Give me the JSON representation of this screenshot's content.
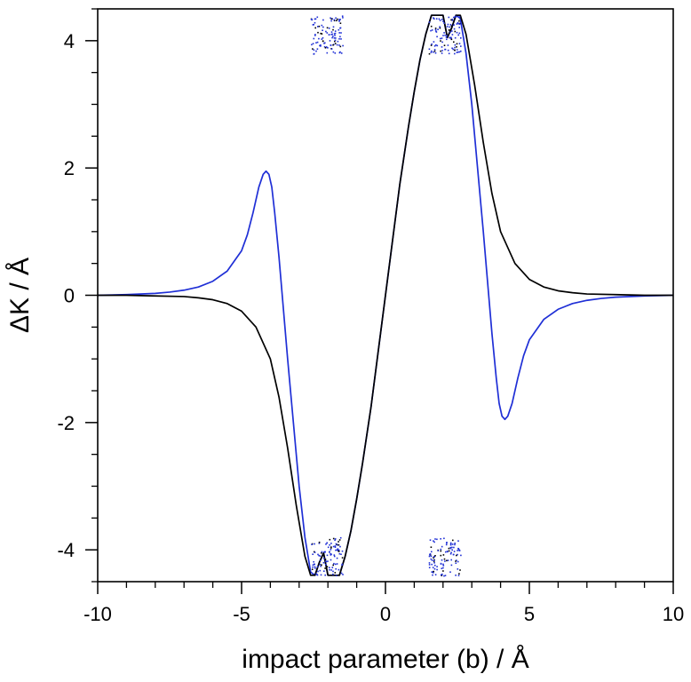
{
  "chart_data": {
    "type": "line",
    "title": "",
    "xlabel": "impact parameter (b) / Å",
    "ylabel": "ΔK / Å",
    "xlim": [
      -10,
      10
    ],
    "ylim": [
      -4.5,
      4.5
    ],
    "x_ticks": [
      -10,
      -5,
      0,
      5,
      10
    ],
    "y_ticks": [
      -4,
      -2,
      0,
      2,
      4
    ],
    "x_tick_labels": [
      "-10",
      "-5",
      "0",
      "5",
      "10"
    ],
    "y_tick_labels": [
      "-4",
      "-2",
      "0",
      "2",
      "4"
    ],
    "grid": false,
    "legend": "none",
    "clip_value": 4.4,
    "series": [
      {
        "name": "black curve",
        "color": "#000000",
        "x": [
          -10,
          -9,
          -8,
          -7,
          -6.5,
          -6,
          -5.5,
          -5,
          -4.5,
          -4,
          -3.7,
          -3.4,
          -3.1,
          -2.8,
          -2.6,
          -2.45,
          -2.3,
          -2.15,
          -2.0,
          -1.8,
          -1.6,
          -1.4,
          -1.2,
          -1.0,
          -0.8,
          -0.5,
          -0.2,
          0,
          0.2,
          0.5,
          0.8,
          1.0,
          1.2,
          1.4,
          1.6,
          1.8,
          2.0,
          2.15,
          2.3,
          2.45,
          2.6,
          2.8,
          3.1,
          3.4,
          3.7,
          4,
          4.5,
          5,
          5.5,
          6,
          6.5,
          7,
          8,
          9,
          10
        ],
        "y": [
          0,
          0,
          -0.01,
          -0.02,
          -0.04,
          -0.07,
          -0.13,
          -0.25,
          -0.5,
          -1.0,
          -1.6,
          -2.4,
          -3.3,
          -4.1,
          -4.4,
          -4.4,
          -4.2,
          -4.05,
          -4.4,
          -4.4,
          -4.4,
          -4.1,
          -3.7,
          -3.2,
          -2.65,
          -1.75,
          -0.7,
          0,
          0.7,
          1.75,
          2.65,
          3.2,
          3.7,
          4.1,
          4.4,
          4.4,
          4.4,
          4.05,
          4.2,
          4.4,
          4.4,
          4.1,
          3.3,
          2.4,
          1.6,
          1.0,
          0.5,
          0.25,
          0.13,
          0.07,
          0.04,
          0.02,
          0.01,
          0,
          0
        ]
      },
      {
        "name": "blue curve",
        "color": "#1f2fd6",
        "x": [
          -10,
          -9,
          -8,
          -7.5,
          -7,
          -6.5,
          -6,
          -5.5,
          -5,
          -4.8,
          -4.6,
          -4.4,
          -4.25,
          -4.15,
          -4.05,
          -3.95,
          -3.85,
          -3.7,
          -3.55,
          -3.4,
          -3.2,
          -3.0,
          -2.8,
          -2.6,
          -2.45,
          -2.3,
          -2.15,
          -2.0,
          -1.8,
          -1.6,
          -1.4,
          -1.2,
          -1.0,
          -0.8,
          -0.5,
          -0.2,
          0,
          0.2,
          0.5,
          0.8,
          1.0,
          1.2,
          1.4,
          1.6,
          1.8,
          2.0,
          2.15,
          2.3,
          2.45,
          2.6,
          2.8,
          3.0,
          3.2,
          3.4,
          3.55,
          3.7,
          3.85,
          3.95,
          4.05,
          4.15,
          4.25,
          4.4,
          4.6,
          4.8,
          5,
          5.5,
          6,
          6.5,
          7,
          7.5,
          8,
          9,
          10
        ],
        "y": [
          0,
          0.01,
          0.03,
          0.05,
          0.08,
          0.13,
          0.22,
          0.38,
          0.7,
          0.95,
          1.3,
          1.7,
          1.9,
          1.95,
          1.9,
          1.7,
          1.3,
          0.6,
          -0.2,
          -1.0,
          -2.0,
          -3.0,
          -3.8,
          -4.35,
          -4.4,
          -4.2,
          -4.05,
          -4.4,
          -4.4,
          -4.4,
          -4.1,
          -3.7,
          -3.2,
          -2.65,
          -1.75,
          -0.7,
          0,
          0.7,
          1.75,
          2.65,
          3.2,
          3.7,
          4.1,
          4.4,
          4.4,
          4.4,
          4.05,
          4.2,
          4.4,
          4.35,
          3.8,
          3.0,
          2.0,
          1.0,
          0.2,
          -0.6,
          -1.3,
          -1.7,
          -1.9,
          -1.95,
          -1.9,
          -1.7,
          -1.3,
          -0.95,
          -0.7,
          -0.38,
          -0.22,
          -0.13,
          -0.08,
          -0.05,
          -0.03,
          -0.01,
          0
        ]
      }
    ],
    "scatter_clusters": [
      {
        "name": "top-left cluster",
        "x_range": [
          -2.6,
          -1.5
        ],
        "y_range": [
          3.8,
          4.4
        ]
      },
      {
        "name": "top-right cluster",
        "x_range": [
          1.5,
          2.6
        ],
        "y_range": [
          3.8,
          4.4
        ]
      },
      {
        "name": "bottom-left cluster",
        "x_range": [
          -2.6,
          -1.5
        ],
        "y_range": [
          -4.4,
          -3.8
        ]
      },
      {
        "name": "bottom-right cluster",
        "x_range": [
          1.5,
          2.6
        ],
        "y_range": [
          -4.4,
          -3.8
        ]
      }
    ]
  }
}
